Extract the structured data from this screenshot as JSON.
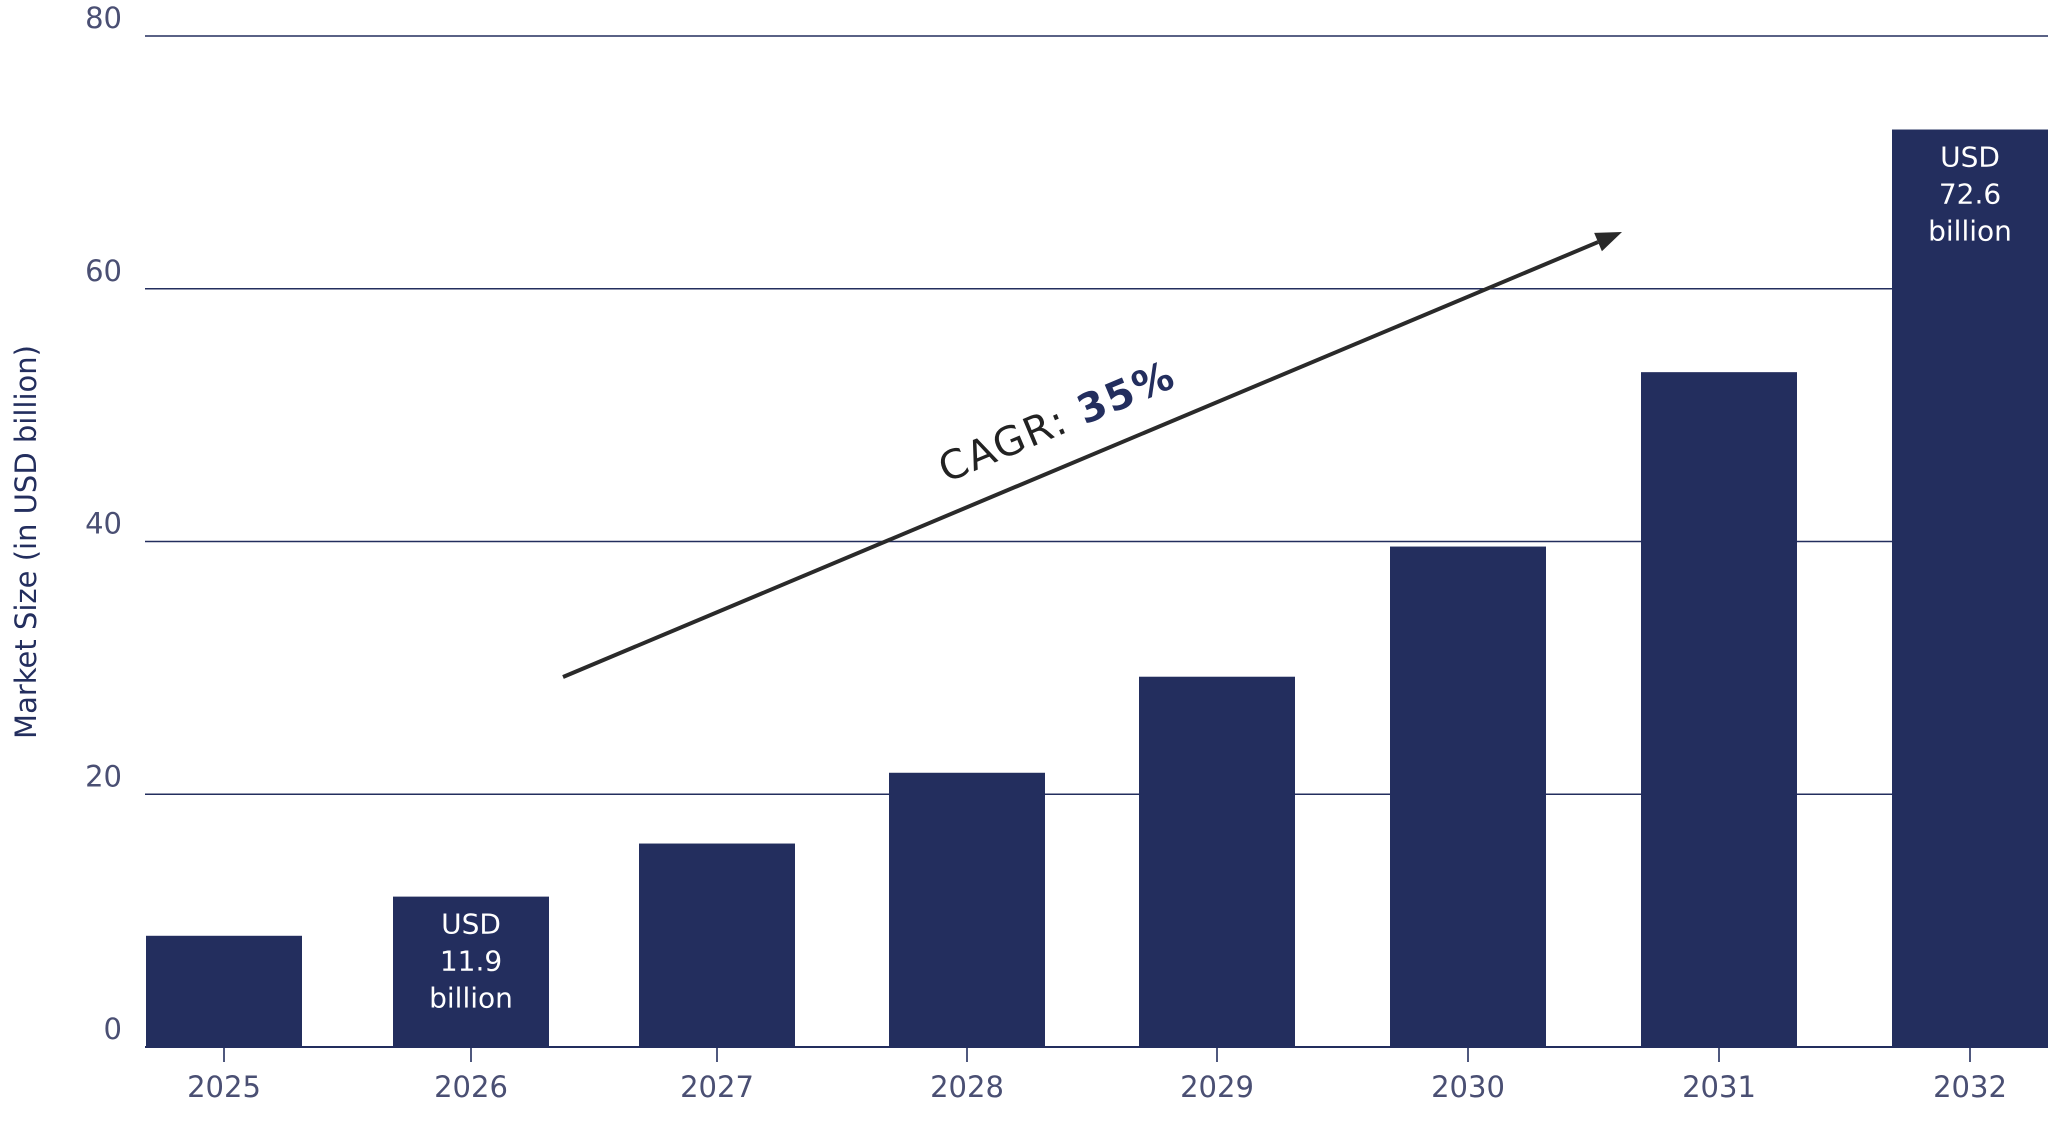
{
  "chart_data": {
    "type": "bar",
    "title": "",
    "xlabel": "",
    "ylabel": "Market Size (in USD billion)",
    "categories": [
      "2025",
      "2026",
      "2027",
      "2028",
      "2029",
      "2030",
      "2031",
      "2032"
    ],
    "values": [
      8.8,
      11.9,
      16.1,
      21.7,
      29.3,
      39.6,
      53.4,
      72.6
    ],
    "ylim": [
      0,
      80
    ],
    "yticks": [
      0,
      20,
      40,
      60,
      80
    ],
    "grid": true,
    "bar_color": "#232e5e",
    "data_labels": [
      {
        "category": "2026",
        "lines": [
          "USD",
          "11.9",
          "billion"
        ]
      },
      {
        "category": "2032",
        "lines": [
          "USD",
          "72.6",
          "billion"
        ]
      }
    ],
    "annotation": {
      "label": "CAGR: ",
      "value": "35%"
    }
  }
}
